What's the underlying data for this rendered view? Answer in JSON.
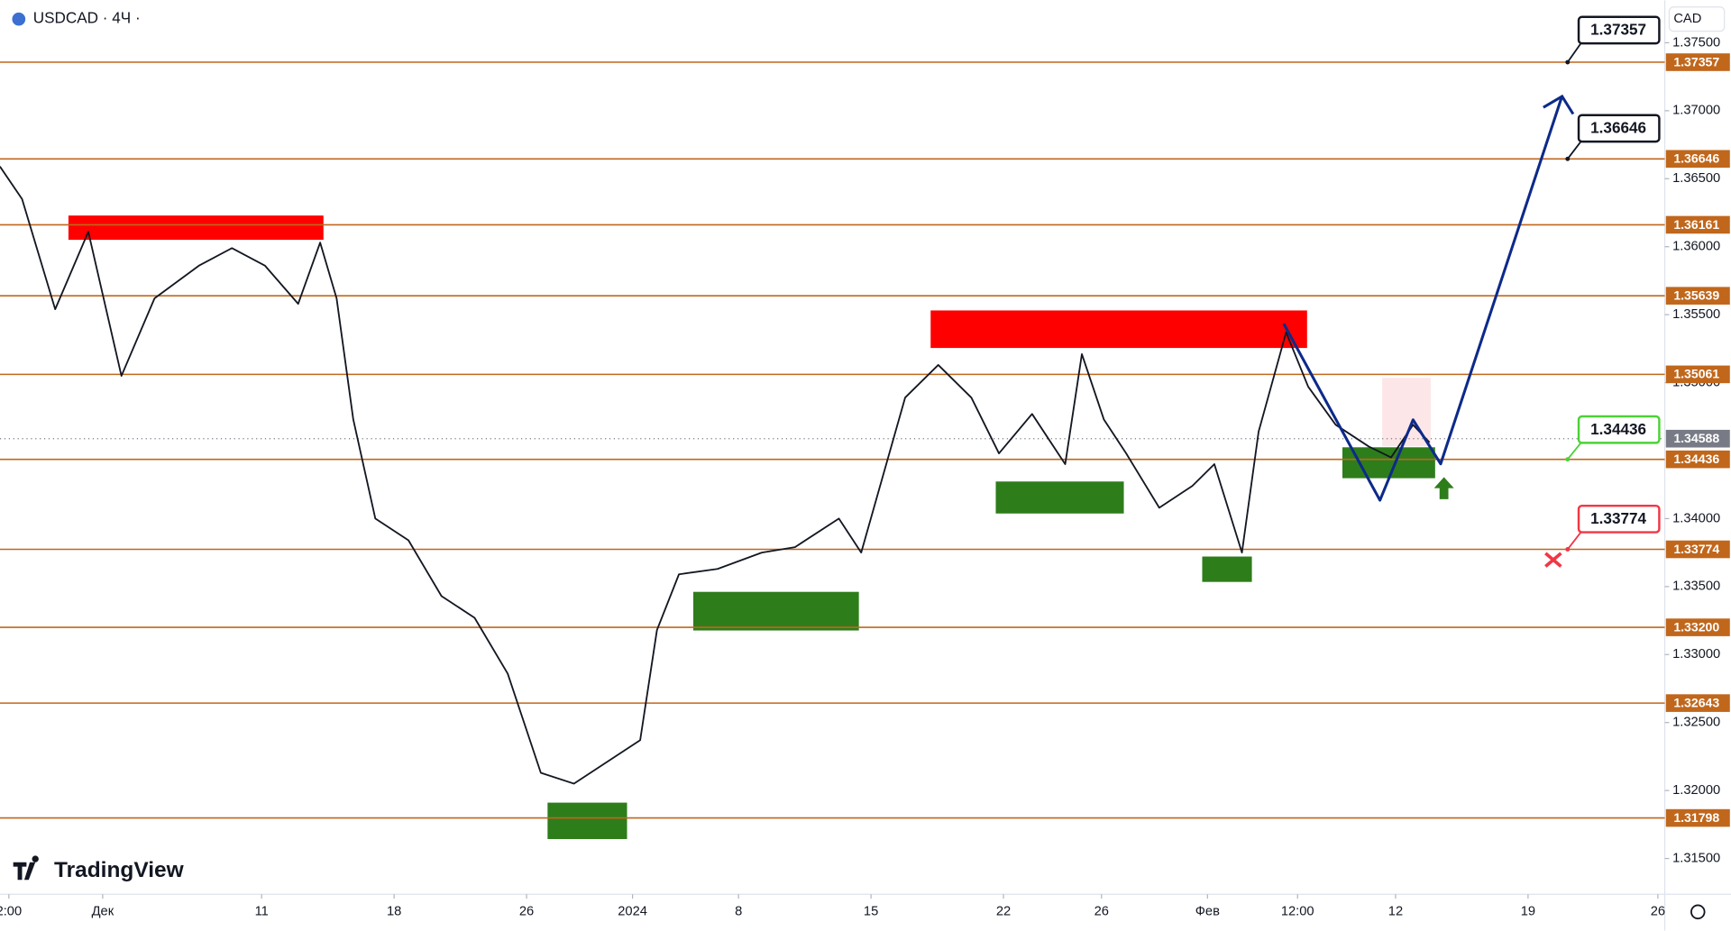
{
  "chart_data": {
    "type": "line",
    "title": "USDCAD · 4Ч ·",
    "currency": "CAD",
    "brand": "TradingView",
    "color": "#131722",
    "level_color": "#c0671c",
    "xlim": [
      -3.875,
      58.96
    ],
    "ylim": [
      1.31237,
      1.37812
    ],
    "xticks": [
      {
        "value": -3.54,
        "label": "2:00"
      },
      {
        "value": 0,
        "label": "Дек"
      },
      {
        "value": 6,
        "label": "11"
      },
      {
        "value": 11,
        "label": "18"
      },
      {
        "value": 16,
        "label": "26"
      },
      {
        "value": 20,
        "label": "2024"
      },
      {
        "value": 24,
        "label": "8"
      },
      {
        "value": 29,
        "label": "15"
      },
      {
        "value": 34,
        "label": "22"
      },
      {
        "value": 37.7,
        "label": "26"
      },
      {
        "value": 41.7,
        "label": "Фев"
      },
      {
        "value": 45.1,
        "label": "12:00"
      },
      {
        "value": 48.8,
        "label": "12"
      },
      {
        "value": 53.8,
        "label": "19"
      },
      {
        "value": 58.7,
        "label": "26"
      }
    ],
    "yticks": [
      {
        "value": 1.375,
        "label": "1.37500"
      },
      {
        "value": 1.37,
        "label": "1.37000"
      },
      {
        "value": 1.365,
        "label": "1.36500"
      },
      {
        "value": 1.36,
        "label": "1.36000"
      },
      {
        "value": 1.355,
        "label": "1.35500"
      },
      {
        "value": 1.35,
        "label": "1.35000"
      },
      {
        "value": 1.34,
        "label": "1.34000"
      },
      {
        "value": 1.335,
        "label": "1.33500"
      },
      {
        "value": 1.33,
        "label": "1.33000"
      },
      {
        "value": 1.325,
        "label": "1.32500"
      },
      {
        "value": 1.32,
        "label": "1.32000"
      },
      {
        "value": 1.315,
        "label": "1.31500"
      }
    ],
    "levels": [
      1.37357,
      1.36646,
      1.36161,
      1.35639,
      1.35061,
      1.34436,
      1.33774,
      {
        "value": 1.332,
        "label": "1.33200"
      },
      1.32643,
      1.31798
    ],
    "last_price": 1.34588,
    "last_price_color": "#787b86",
    "callouts": [
      {
        "value": 1.37357,
        "color": "#131722"
      },
      {
        "value": 1.36646,
        "color": "#131722"
      },
      {
        "value": 1.34436,
        "color": "#4cd137"
      },
      {
        "value": 1.33774,
        "color": "#f23645"
      }
    ],
    "series": [
      {
        "color": "#131722",
        "x": [
          -3.88,
          -3.04,
          -1.79,
          -0.54,
          0.71,
          1.96,
          3.63,
          4.88,
          6.13,
          7.38,
          8.21,
          8.83,
          9.46,
          10.29,
          11.54,
          12.79,
          14.04,
          15.29,
          16.54,
          17.79,
          19.04,
          20.29,
          20.92,
          21.75,
          23.21,
          24.88,
          26.13,
          27.79,
          28.63,
          29.46,
          30.29,
          31.54,
          32.79,
          33.83,
          35.08,
          36.33,
          36.96,
          37.79,
          38.63,
          39.88,
          41.13,
          41.96,
          43.0,
          43.63,
          44.67,
          45.5,
          46.54,
          47.79,
          48.63,
          49.46,
          50.08
        ],
        "values": [
          1.3659,
          1.3635,
          1.3554,
          1.3611,
          1.3505,
          1.3562,
          1.3586,
          1.3599,
          1.3586,
          1.3558,
          1.3603,
          1.3562,
          1.3473,
          1.34,
          1.3384,
          1.3343,
          1.3327,
          1.3286,
          1.3213,
          1.3205,
          1.3221,
          1.3237,
          1.3318,
          1.3359,
          1.3363,
          1.3375,
          1.3379,
          1.34,
          1.3375,
          1.3432,
          1.3489,
          1.3513,
          1.3489,
          1.3448,
          1.3477,
          1.344,
          1.3521,
          1.3473,
          1.3448,
          1.3408,
          1.3424,
          1.344,
          1.3375,
          1.3464,
          1.3537,
          1.3497,
          1.3469,
          1.3453,
          1.3445,
          1.3469,
          1.3456
        ]
      },
      {
        "color": "#0d2a8a",
        "x": [
          44.58,
          48.21,
          49.46,
          50.5,
          55.08
        ],
        "values": [
          1.35433,
          1.34135,
          1.34727,
          1.34403,
          1.37106
        ]
      }
    ]
  }
}
